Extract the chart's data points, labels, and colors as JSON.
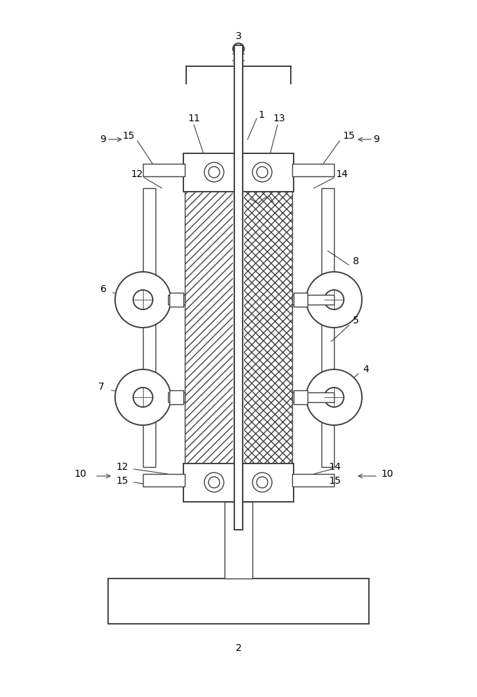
{
  "bg_color": "#ffffff",
  "lc": "#404040",
  "lw": 1.0,
  "lw2": 1.4,
  "figsize": [
    6.84,
    10.0
  ],
  "dpi": 100
}
